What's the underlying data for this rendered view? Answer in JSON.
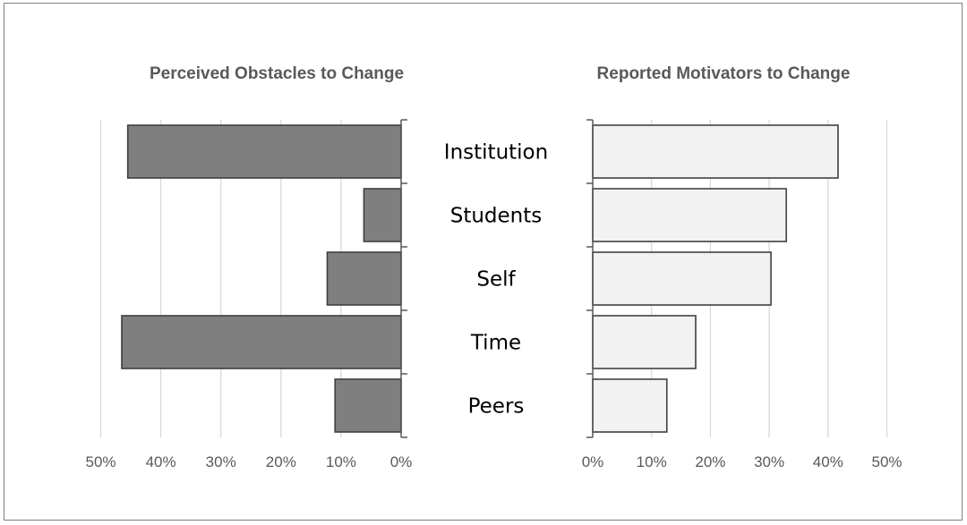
{
  "chart_data": [
    {
      "type": "bar",
      "orientation": "horizontal",
      "direction": "reversed",
      "title": "Perceived Obstacles to Change",
      "categories": [
        "Institution",
        "Students",
        "Self",
        "Time",
        "Peers"
      ],
      "values": [
        45.5,
        6.2,
        12.3,
        46.5,
        11.0
      ],
      "x_ticks": [
        "50%",
        "40%",
        "30%",
        "20%",
        "10%",
        "0%"
      ],
      "xlim": [
        0,
        50
      ],
      "grid": true,
      "bar_color": "#7f7f7f",
      "bar_edge_color": "#404040"
    },
    {
      "type": "bar",
      "orientation": "horizontal",
      "direction": "normal",
      "title": "Reported Motivators to Change",
      "categories": [
        "Institution",
        "Students",
        "Self",
        "Time",
        "Peers"
      ],
      "values": [
        41.7,
        32.9,
        30.3,
        17.5,
        12.6
      ],
      "x_ticks": [
        "0%",
        "10%",
        "20%",
        "30%",
        "40%",
        "50%"
      ],
      "xlim": [
        0,
        50
      ],
      "grid": true,
      "bar_color": "#f2f2f2",
      "bar_edge_color": "#404040"
    }
  ],
  "colors": {
    "gridline": "#d9d9d9",
    "axis": "#595959",
    "text": "#595959",
    "border": "#7f7f7f"
  }
}
